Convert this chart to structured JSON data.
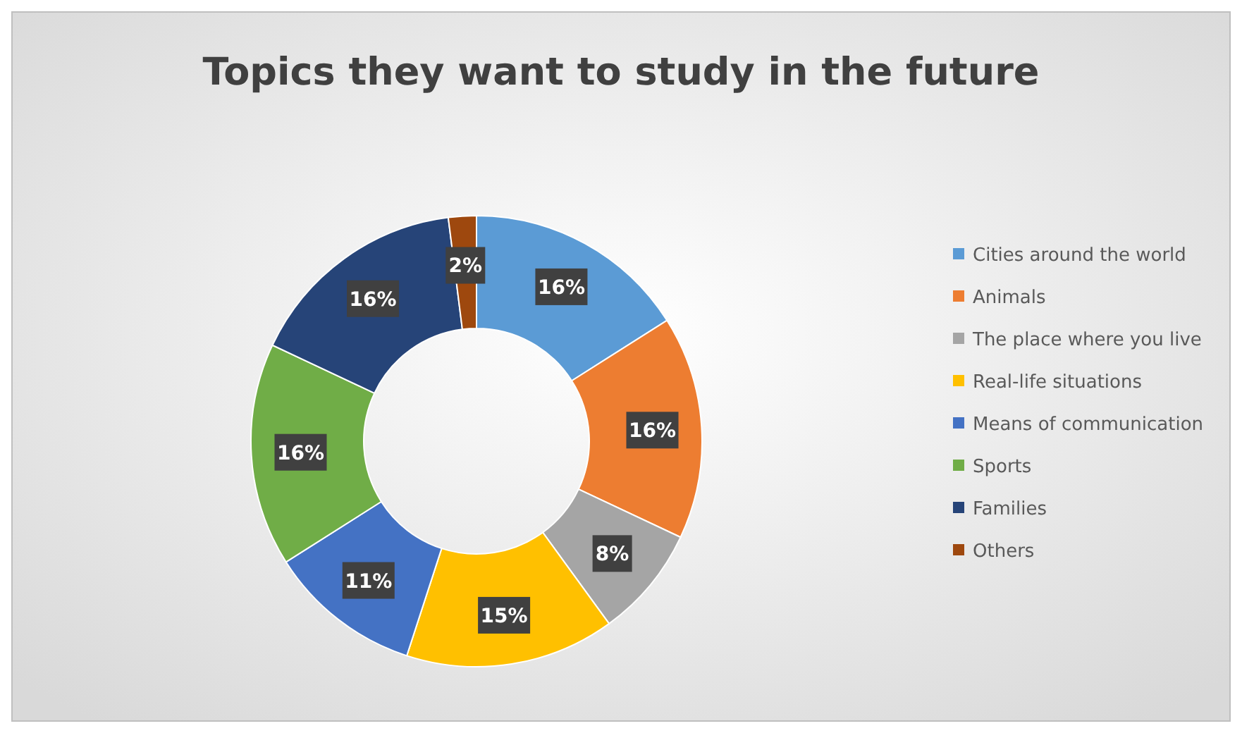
{
  "chart_data": {
    "type": "donut",
    "title": "Topics they want to study in the future",
    "categories": [
      "Cities around the world",
      "Animals",
      "The place where you live",
      "Real-life situations",
      "Means of communication",
      "Sports",
      "Families",
      "Others"
    ],
    "values": [
      16,
      16,
      8,
      15,
      11,
      16,
      16,
      2
    ],
    "colors": [
      "#5b9bd5",
      "#ed7d31",
      "#a5a5a5",
      "#ffc000",
      "#4472c4",
      "#70ad47",
      "#264478",
      "#9e480e"
    ],
    "value_labels": [
      "16%",
      "16%",
      "8%",
      "15%",
      "11%",
      "16%",
      "16%",
      "2%"
    ],
    "legend": "right"
  }
}
